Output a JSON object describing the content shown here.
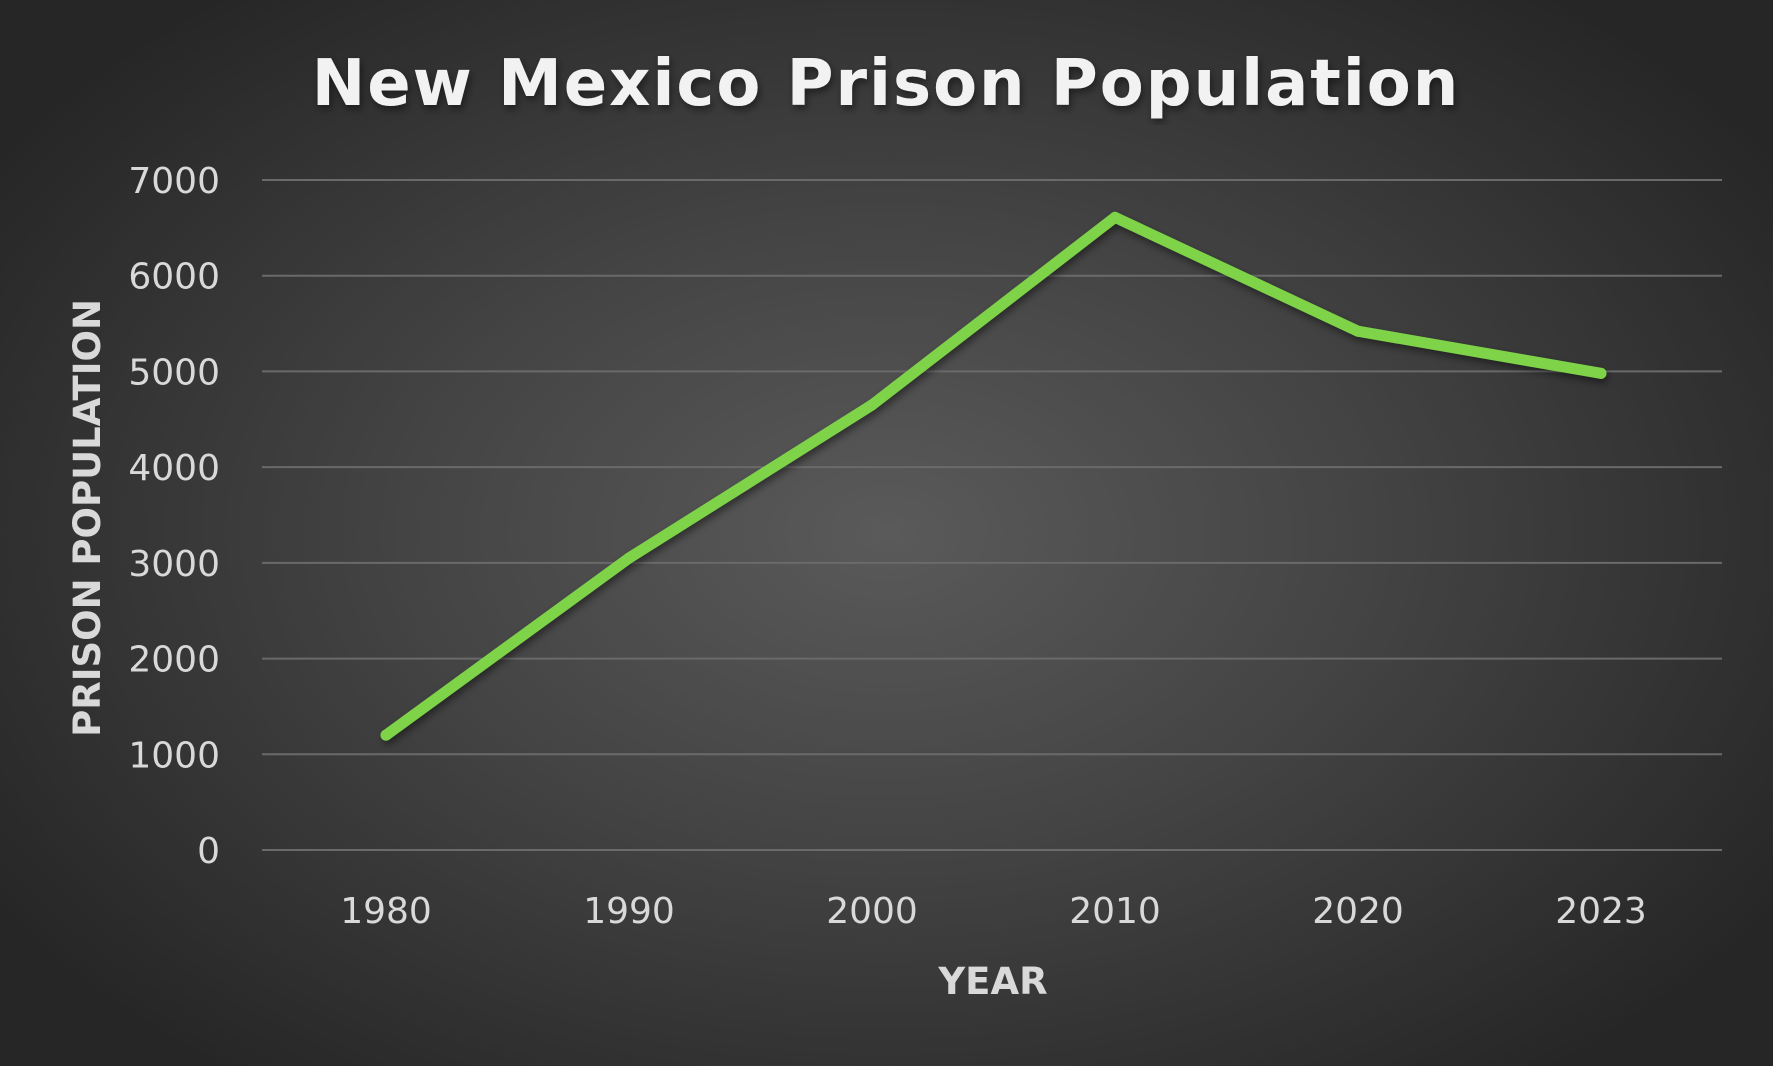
{
  "chart_data": {
    "type": "line",
    "title": "New Mexico Prison Population",
    "xlabel": "YEAR",
    "ylabel": "PRISON POPULATION",
    "categories": [
      "1980",
      "1990",
      "2000",
      "2010",
      "2020",
      "2023"
    ],
    "series": [
      {
        "name": "Prison Population",
        "values": [
          1200,
          3050,
          4650,
          6610,
          5420,
          4980
        ],
        "color": "#7ED348"
      }
    ],
    "ylim": [
      0,
      7000
    ],
    "yticks": [
      "0",
      "1000",
      "2000",
      "3000",
      "4000",
      "5000",
      "6000",
      "7000"
    ],
    "grid": true,
    "legend": "none"
  }
}
